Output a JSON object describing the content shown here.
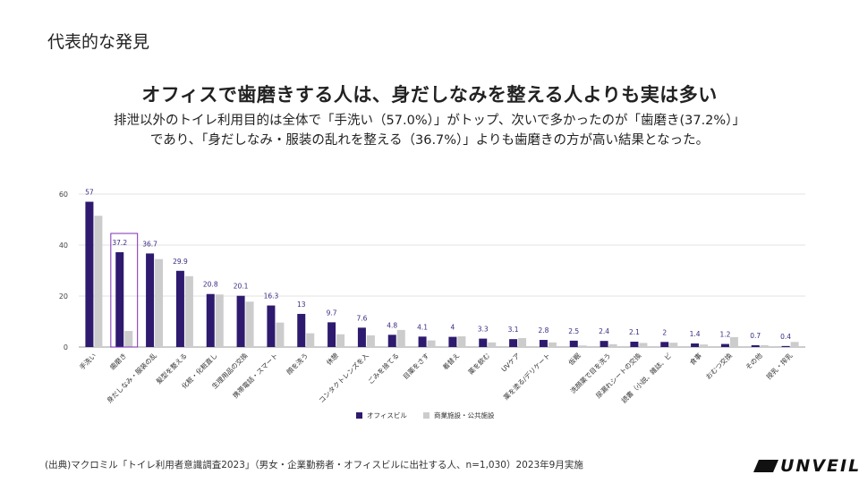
{
  "page": {
    "section_label": "代表的な発見",
    "headline": "オフィスで歯磨きする人は、身だしなみを整える人よりも実は多い",
    "subtext_line1": "排泄以外のトイレ利用目的は全体で「手洗い（57.0%）」がトップ、次いで多かったのが「歯磨き(37.2%）」",
    "subtext_line2": "であり、「身だしなみ・服装の乱れを整える（36.7%）」よりも歯磨きの方が高い結果となった。",
    "source": "(出典)マクロミル「トイレ利用者意識調査2023」（男女・企業勤務者・オフィスビルに出社する人、n=1,030）2023年9月実施",
    "logo_text": "UNVEIL"
  },
  "chart_data": {
    "type": "bar",
    "title": "",
    "xlabel": "",
    "ylabel": "",
    "ylim": [
      0,
      60
    ],
    "yticks": [
      0,
      20,
      40,
      60
    ],
    "grid": true,
    "legend_position": "bottom",
    "highlight_category_index": 1,
    "colors": {
      "office": "#2e1a6e",
      "commercial": "#cccccc",
      "highlight": "#7b2fb5"
    },
    "categories": [
      "手洗い",
      "歯磨き",
      "身だしなみ・服装の乱",
      "髪型を整える",
      "化粧・化粧直し",
      "生理用品の交換",
      "携帯電話・スマート",
      "顔を洗う",
      "休憩",
      "コンタクトレンズを入",
      "ごみを捨てる",
      "目薬をさす",
      "着替え",
      "薬を飲む",
      "UVケア",
      "薬を塗る/デリケート",
      "仮眠",
      "洗顔薬で目を洗う",
      "尿漏れシートの交換",
      "読書（小説、雑誌、ビ",
      "食事",
      "おむつ交換",
      "その他",
      "授乳・搾乳"
    ],
    "series": [
      {
        "name": "オフィスビル",
        "values": [
          57,
          37.2,
          36.7,
          29.9,
          20.8,
          20.1,
          16.3,
          13,
          9.7,
          7.6,
          4.8,
          4.1,
          4,
          3.3,
          3.1,
          2.8,
          2.5,
          2.4,
          2.1,
          2,
          1.4,
          1.2,
          0.7,
          0.4
        ],
        "labels": [
          "57",
          "37.2",
          "36.7",
          "29.9",
          "20.8",
          "20.1",
          "16.3",
          "13",
          "9.7",
          "7.6",
          "4.8",
          "4.1",
          "4",
          "3.3",
          "3.1",
          "2.8",
          "2.5",
          "2.4",
          "2.1",
          "2",
          "1.4",
          "1.2",
          "0.7",
          "0.4"
        ]
      },
      {
        "name": "商業施設・公共施設",
        "values": [
          51.5,
          6.3,
          34.5,
          27.8,
          20.6,
          17.8,
          9.6,
          5.4,
          5,
          4.6,
          6.7,
          2.6,
          4.2,
          1.8,
          3.5,
          1.8,
          0.6,
          1.1,
          1.6,
          1.7,
          1,
          3.9,
          0.7,
          2
        ]
      }
    ]
  }
}
